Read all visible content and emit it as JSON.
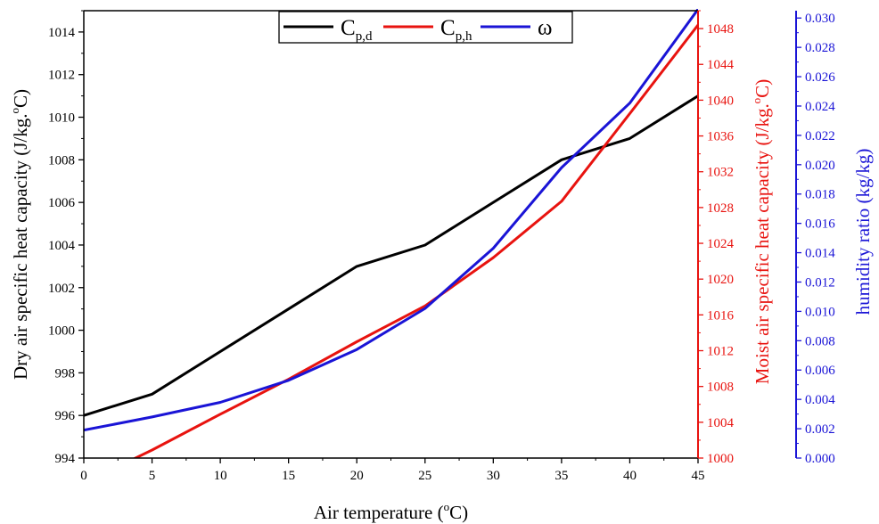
{
  "chart_data": {
    "type": "line",
    "x": [
      0,
      5,
      10,
      15,
      20,
      25,
      30,
      35,
      40,
      45
    ],
    "xlabel": "Air temperature (oC)",
    "xlabel_parts": {
      "base": "Air temperature (",
      "sup": "o",
      "tail": "C)"
    },
    "xlim": [
      0,
      45
    ],
    "xticks": [
      0,
      5,
      10,
      15,
      20,
      25,
      30,
      35,
      40,
      45
    ],
    "axes": {
      "left": {
        "label": "Dry air specific heat capacity (J/kg.oC)",
        "label_parts": {
          "base": "Dry air specific heat capacity (J/kg.",
          "sup": "o",
          "tail": "C)"
        },
        "ylim": [
          994,
          1015
        ],
        "ticks": [
          994,
          996,
          998,
          1000,
          1002,
          1004,
          1006,
          1008,
          1010,
          1012,
          1014
        ],
        "color": "#000000"
      },
      "right1": {
        "label": "Moist air specific heat capacity (J/kg.oC)",
        "label_parts": {
          "base": "Moist air specific heat capacity (J/kg.",
          "sup": "o",
          "tail": "C)"
        },
        "ylim": [
          1000,
          1050
        ],
        "ticks": [
          1000,
          1004,
          1008,
          1012,
          1016,
          1020,
          1024,
          1028,
          1032,
          1036,
          1040,
          1044,
          1048
        ],
        "color": "#e8130f"
      },
      "right2": {
        "label": "humidity ratio (kg/kg)",
        "ylim": [
          0.0,
          0.0305
        ],
        "ticks": [
          "0.000",
          "0.002",
          "0.004",
          "0.006",
          "0.008",
          "0.010",
          "0.012",
          "0.014",
          "0.016",
          "0.018",
          "0.020",
          "0.022",
          "0.024",
          "0.026",
          "0.028",
          "0.030"
        ],
        "color": "#1a14d6"
      }
    },
    "series": [
      {
        "name": "Cp,d",
        "label_base": "C",
        "label_sub": "p,d",
        "axis": "left",
        "color": "#000000",
        "values": [
          996,
          997,
          999,
          1001,
          1003,
          1004,
          1006,
          1008,
          1009,
          1011
        ]
      },
      {
        "name": "Cp,h",
        "label_base": "C",
        "label_sub": "p,h",
        "axis": "right1",
        "color": "#e8130f",
        "values": [
          997.2,
          1000.9,
          1004.9,
          1008.8,
          1013.0,
          1017.0,
          1022.4,
          1028.7,
          1038.5,
          1048.4
        ]
      },
      {
        "name": "ω",
        "label_base": "ω",
        "label_sub": "",
        "axis": "right2",
        "color": "#1a14d6",
        "values": [
          0.0019,
          0.0028,
          0.0038,
          0.0053,
          0.0074,
          0.0102,
          0.0143,
          0.0198,
          0.0242,
          0.0306
        ]
      }
    ],
    "legend": {
      "placement": "top-center",
      "frame": true
    },
    "grid": false
  }
}
